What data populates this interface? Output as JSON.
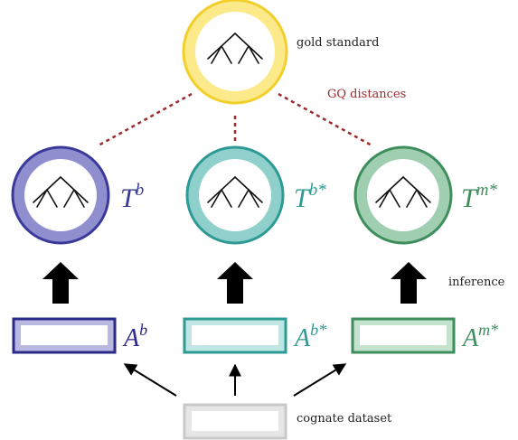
{
  "gold": {
    "label": "gold standard",
    "color": "#f2cf2a",
    "fill": "#fbe98a"
  },
  "distances_label": "GQ distances",
  "distances_color": "#9c2b2b",
  "trees": [
    {
      "symbol": "T",
      "sup": "b",
      "color": "#3a3a9a",
      "fill": "#8f8fcf"
    },
    {
      "symbol": "T",
      "sup": "b*",
      "color": "#2e9a94",
      "fill": "#8fd0cc"
    },
    {
      "symbol": "T",
      "sup": "m*",
      "color": "#3e8d5c",
      "fill": "#9fcfb0"
    }
  ],
  "alignments": [
    {
      "symbol": "A",
      "sup": "b",
      "color": "#2a2a8a",
      "fill": "#b8b8e0"
    },
    {
      "symbol": "A",
      "sup": "b*",
      "color": "#2e9a94",
      "fill": "#bfe6e3"
    },
    {
      "symbol": "A",
      "sup": "m*",
      "color": "#3e8d5c",
      "fill": "#c3e3cf"
    }
  ],
  "inference_label": "inference",
  "dataset": {
    "label": "cognate dataset",
    "color": "#c8c8c8",
    "fill": "#e6e6e6"
  },
  "icons": {
    "tree": "tree-icon",
    "up_arrow": "up-arrow-icon"
  }
}
